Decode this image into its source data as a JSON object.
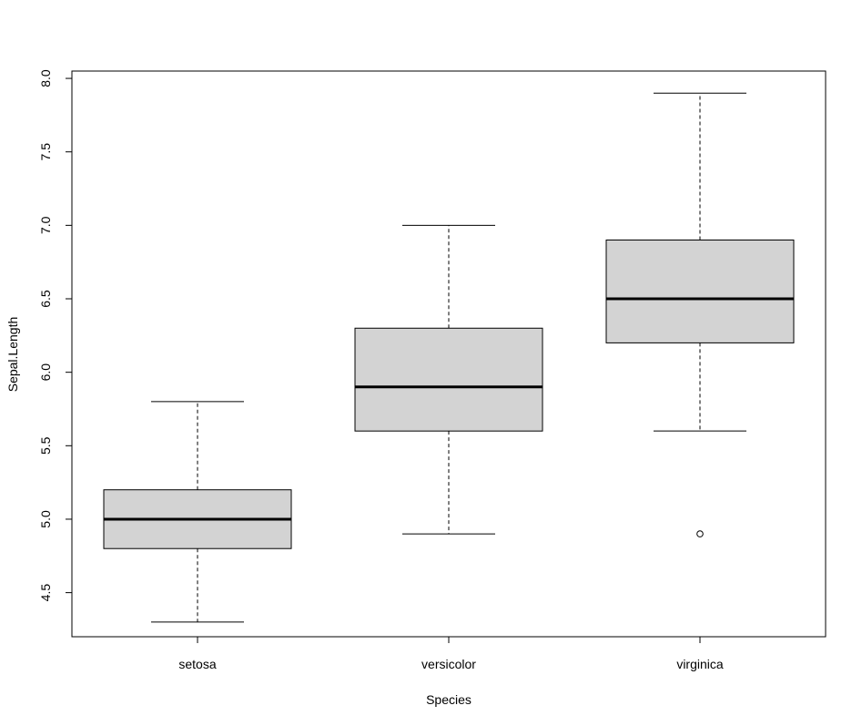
{
  "chart_data": {
    "type": "boxplot",
    "title": "",
    "xlabel": "Species",
    "ylabel": "Sepal.Length",
    "ylim": [
      4.2,
      8.05
    ],
    "yticks": [
      4.5,
      5.0,
      5.5,
      6.0,
      6.5,
      7.0,
      7.5,
      8.0
    ],
    "ytick_labels": [
      "4.5",
      "5.0",
      "5.5",
      "6.0",
      "6.5",
      "7.0",
      "7.5",
      "8.0"
    ],
    "categories": [
      "setosa",
      "versicolor",
      "virginica"
    ],
    "boxes": [
      {
        "category": "setosa",
        "whisker_low": 4.3,
        "q1": 4.8,
        "median": 5.0,
        "q3": 5.2,
        "whisker_high": 5.8,
        "outliers": []
      },
      {
        "category": "versicolor",
        "whisker_low": 4.9,
        "q1": 5.6,
        "median": 5.9,
        "q3": 6.3,
        "whisker_high": 7.0,
        "outliers": []
      },
      {
        "category": "virginica",
        "whisker_low": 5.6,
        "q1": 6.2,
        "median": 6.5,
        "q3": 6.9,
        "whisker_high": 7.9,
        "outliers": [
          4.9
        ]
      }
    ],
    "box_fill": "#d3d3d3",
    "grid": false,
    "legend": "none"
  }
}
